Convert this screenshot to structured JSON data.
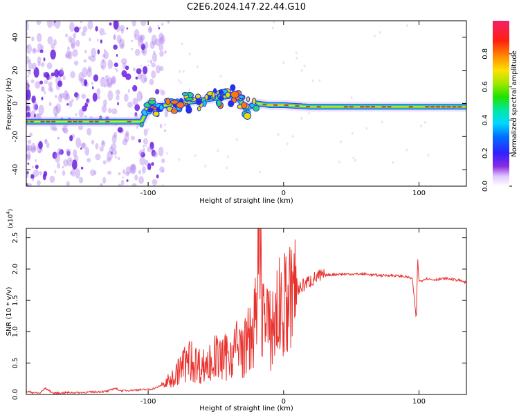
{
  "title": "C2E6.2024.147.22.44.G10",
  "chart_data": [
    {
      "type": "heatmap",
      "xlabel": "Height of straight line (km)",
      "ylabel": "Frequency (Hz)",
      "xlim": [
        -190,
        135
      ],
      "ylim": [
        -50,
        50
      ],
      "xticks": [
        -100,
        0,
        100
      ],
      "yticks": [
        -40,
        -20,
        0,
        20,
        40
      ],
      "colorbar": {
        "label": "Normalized spectral amplitude",
        "ticks": [
          "0.0",
          "0.2",
          "0.4",
          "0.6",
          "0.8"
        ],
        "range": [
          0,
          1
        ]
      },
      "ridge": [
        [
          -190,
          -11
        ],
        [
          -150,
          -11
        ],
        [
          -105,
          -11
        ],
        [
          -100,
          -3
        ],
        [
          -80,
          0
        ],
        [
          -60,
          2
        ],
        [
          -45,
          4
        ],
        [
          -35,
          5
        ],
        [
          -28,
          -3
        ],
        [
          -20,
          0
        ],
        [
          -10,
          -1
        ],
        [
          0,
          -1
        ],
        [
          20,
          -2
        ],
        [
          60,
          -2
        ],
        [
          100,
          -2
        ],
        [
          135,
          -2
        ]
      ],
      "scatter_region": [
        -190,
        -85
      ]
    },
    {
      "type": "line",
      "xlabel": "Height of straight line (km)",
      "ylabel": "SNR (10 * v/v)",
      "yexponent": "(x10",
      "yexponent_power": "4",
      "yexponent_close": ")",
      "xlim": [
        -190,
        135
      ],
      "ylim": [
        0,
        2.65
      ],
      "xticks": [
        -100,
        0,
        100
      ],
      "yticks": [
        "0.0",
        "0.5",
        "1.0",
        "1.5",
        "2.0",
        "2.5"
      ],
      "series": [
        {
          "color": "#e8302c",
          "x": [
            -190,
            -185,
            -180,
            -176,
            -170,
            -160,
            -150,
            -140,
            -130,
            -125,
            -120,
            -110,
            -100,
            -95,
            -90,
            -85,
            -80,
            -75,
            -70,
            -65,
            -60,
            -55,
            -50,
            -45,
            -40,
            -35,
            -30,
            -25,
            -20,
            -18,
            -15,
            -12,
            -10,
            -5,
            0,
            5,
            10,
            15,
            20,
            25,
            30,
            40,
            50,
            60,
            70,
            80,
            90,
            95,
            98,
            99,
            100,
            102,
            105,
            110,
            120,
            130,
            135
          ],
          "y": [
            0.05,
            0.03,
            0.02,
            0.1,
            0.02,
            0.03,
            0.03,
            0.04,
            0.05,
            0.1,
            0.06,
            0.07,
            0.08,
            0.1,
            0.15,
            0.2,
            0.3,
            0.45,
            0.55,
            0.5,
            0.45,
            0.5,
            0.6,
            0.55,
            0.65,
            0.75,
            0.7,
            0.9,
            1.2,
            2.6,
            1.3,
            1.1,
            1.0,
            1.3,
            1.4,
            1.5,
            1.65,
            1.75,
            1.82,
            1.87,
            1.9,
            1.92,
            1.92,
            1.92,
            1.9,
            1.9,
            1.88,
            1.85,
            1.2,
            2.2,
            1.8,
            1.82,
            1.85,
            1.83,
            1.85,
            1.82,
            1.78
          ]
        }
      ]
    }
  ]
}
